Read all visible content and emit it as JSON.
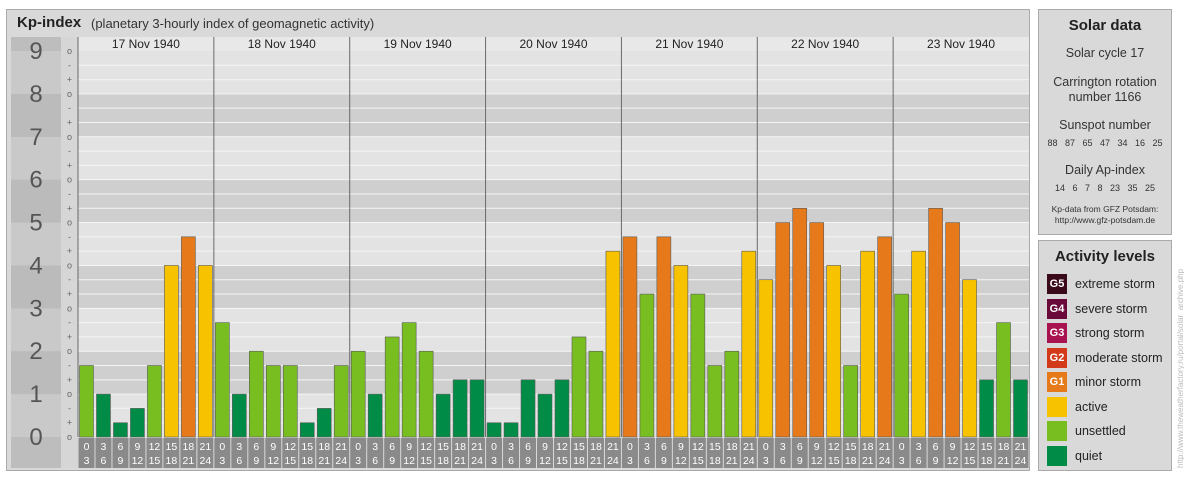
{
  "header": {
    "title": "Kp-index",
    "subtitle": "(planetary 3-hourly index of geomagnetic activity)"
  },
  "solar": {
    "title": "Solar data",
    "cycle": "Solar cycle 17",
    "carrington_line1": "Carrington rotation",
    "carrington_line2": "number 1166",
    "sunspot_label": "Sunspot number",
    "sunspot_values": "88 87 65 47 34 16 25",
    "ap_label": "Daily Ap-index",
    "ap_values": "14 6 7 8 23 35 25",
    "source_line1": "Kp-data from GFZ Potsdam:",
    "source_line2": "http://www.gfz-potsdam.de"
  },
  "activity": {
    "title": "Activity levels",
    "items": [
      {
        "code": "G5",
        "label": "extreme storm",
        "color": "#3a0a1a"
      },
      {
        "code": "G4",
        "label": "severe storm",
        "color": "#6a0a3a"
      },
      {
        "code": "G3",
        "label": "strong storm",
        "color": "#a8124e"
      },
      {
        "code": "G2",
        "label": "moderate storm",
        "color": "#d23a1a"
      },
      {
        "code": "G1",
        "label": "minor storm",
        "color": "#e67a1a"
      },
      {
        "code": "",
        "label": "active",
        "color": "#f7c200"
      },
      {
        "code": "",
        "label": "unsettled",
        "color": "#78be20"
      },
      {
        "code": "",
        "label": "quiet",
        "color": "#008c46"
      }
    ]
  },
  "watermark": "http://www.theweatherfactory.ru/portal/solar_archive.php",
  "chart_data": {
    "type": "bar",
    "ylim": [
      0,
      9
    ],
    "y_ticks": [
      "0",
      "1",
      "2",
      "3",
      "4",
      "5",
      "6",
      "7",
      "8",
      "9"
    ],
    "minor_ticks": [
      "o",
      "+",
      "-",
      "o",
      "+",
      "-",
      "o",
      "+",
      "-",
      "o",
      "+",
      "-",
      "o",
      "+",
      "-",
      "o",
      "+",
      "-",
      "o",
      "+",
      "-",
      "o",
      "+",
      "-",
      "o",
      "+",
      "-",
      "o"
    ],
    "days": [
      "17 Nov 1940",
      "18 Nov 1940",
      "19 Nov 1940",
      "20 Nov 1940",
      "21 Nov 1940",
      "22 Nov 1940",
      "23 Nov 1940"
    ],
    "interval_starts": [
      "0",
      "3",
      "6",
      "9",
      "12",
      "15",
      "18",
      "21"
    ],
    "interval_ends": [
      "3",
      "6",
      "9",
      "12",
      "15",
      "18",
      "21",
      "24"
    ],
    "values": [
      [
        1.667,
        1.0,
        0.333,
        0.667,
        1.667,
        4.0,
        4.667,
        4.0
      ],
      [
        2.667,
        1.0,
        2.0,
        1.667,
        1.667,
        0.333,
        0.667,
        1.667
      ],
      [
        2.0,
        1.0,
        2.333,
        2.667,
        2.0,
        1.0,
        1.333,
        1.333
      ],
      [
        0.333,
        0.333,
        1.333,
        1.0,
        1.333,
        2.333,
        2.0,
        4.333
      ],
      [
        4.667,
        3.333,
        4.667,
        4.0,
        3.333,
        1.667,
        2.0,
        4.333
      ],
      [
        3.667,
        5.0,
        5.333,
        5.0,
        4.0,
        1.667,
        4.333,
        4.667
      ],
      [
        3.333,
        4.333,
        5.333,
        5.0,
        3.667,
        1.333,
        2.667,
        1.333
      ]
    ],
    "colors": {
      "quiet": "#008c46",
      "unsettled": "#78be20",
      "active": "#f7c200",
      "minor_storm": "#e67a1a",
      "moderate_storm": "#d23a1a"
    }
  }
}
